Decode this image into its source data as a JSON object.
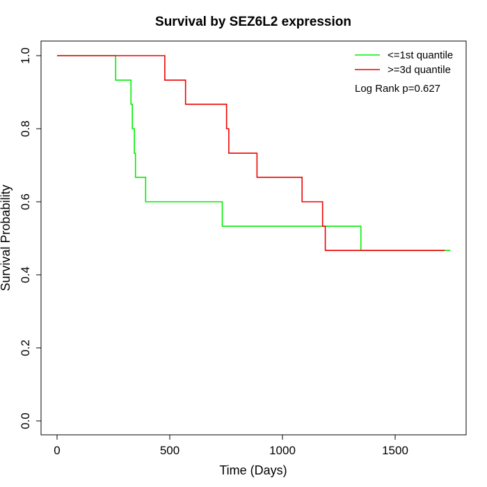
{
  "chart_data": {
    "type": "line",
    "title": "Survival by SEZ6L2 expression",
    "xlabel": "Time (Days)",
    "ylabel": "Survival Probability",
    "xlim": [
      0,
      1800
    ],
    "ylim": [
      0,
      1.0
    ],
    "x_ticks": [
      0,
      500,
      1000,
      1500
    ],
    "y_ticks": [
      0.0,
      0.2,
      0.4,
      0.6,
      0.8,
      1.0
    ],
    "x_tick_labels": [
      "0",
      "500",
      "1000",
      "1500"
    ],
    "y_tick_labels": [
      "0.0",
      "0.2",
      "0.4",
      "0.6",
      "0.8",
      "1.0"
    ],
    "grid": false,
    "legend_position": "top-right",
    "annotation": "Log Rank p=0.627",
    "series": [
      {
        "name": "<=1st quantile",
        "color": "#00ee00",
        "step_x": [
          0,
          260,
          328,
          334,
          343,
          348,
          393,
          733,
          1348,
          1745
        ],
        "step_y": [
          1.0,
          0.933,
          0.867,
          0.8,
          0.733,
          0.667,
          0.6,
          0.533,
          0.467,
          0.467
        ]
      },
      {
        "name": ">=3d quantile",
        "color": "#ee0000",
        "step_x": [
          0,
          478,
          570,
          752,
          762,
          887,
          1087,
          1178,
          1190,
          1720
        ],
        "step_y": [
          1.0,
          0.933,
          0.867,
          0.8,
          0.733,
          0.667,
          0.6,
          0.533,
          0.467,
          0.467
        ]
      }
    ]
  }
}
